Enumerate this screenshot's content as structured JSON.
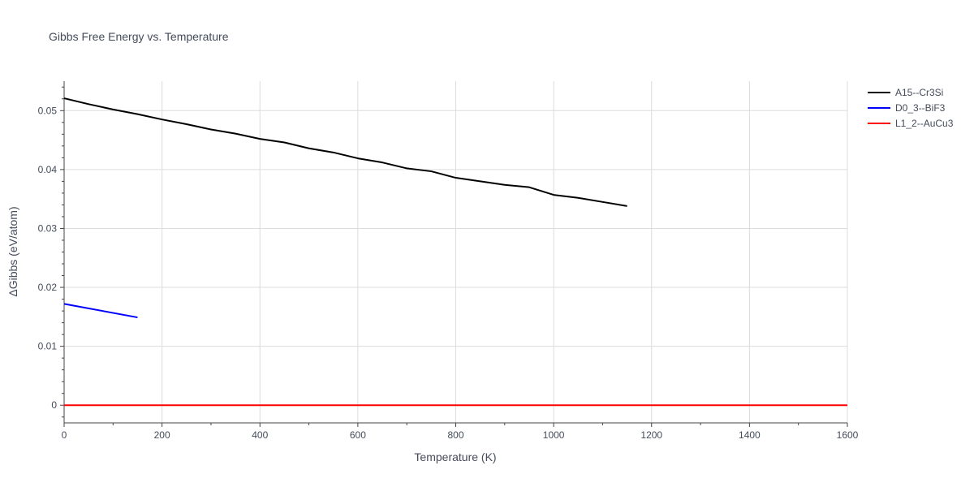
{
  "chart_data": {
    "type": "line",
    "title": "Gibbs Free Energy vs. Temperature",
    "xlabel": "Temperature (K)",
    "ylabel": "ΔGibbs (eV/atom)",
    "xlim": [
      0,
      1600
    ],
    "ylim": [
      -0.003,
      0.055
    ],
    "x_ticks": [
      0,
      200,
      400,
      600,
      800,
      1000,
      1200,
      1400,
      1600
    ],
    "y_ticks": [
      0,
      0.01,
      0.02,
      0.03,
      0.04,
      0.05
    ],
    "y_tick_labels": [
      "0",
      "0.01",
      "0.02",
      "0.03",
      "0.04",
      "0.05"
    ],
    "grid": true,
    "legend_position": "top-right-outside",
    "series": [
      {
        "name": "A15--Cr3Si",
        "color": "#000000",
        "x": [
          0,
          50,
          100,
          150,
          200,
          250,
          300,
          350,
          400,
          450,
          500,
          550,
          600,
          650,
          700,
          750,
          800,
          850,
          900,
          950,
          1000,
          1050,
          1100,
          1150
        ],
        "y": [
          0.0521,
          0.0511,
          0.0502,
          0.0494,
          0.0485,
          0.0477,
          0.0468,
          0.0461,
          0.0452,
          0.0446,
          0.0436,
          0.0429,
          0.0419,
          0.0412,
          0.0402,
          0.0397,
          0.0386,
          0.038,
          0.0374,
          0.037,
          0.0357,
          0.0352,
          0.0345,
          0.0338
        ]
      },
      {
        "name": "D0_3--BiF3",
        "color": "#0000ff",
        "x": [
          0,
          150
        ],
        "y": [
          0.0172,
          0.0149
        ]
      },
      {
        "name": "L1_2--AuCu3",
        "color": "#ff0000",
        "x": [
          0,
          1600
        ],
        "y": [
          0,
          0
        ]
      }
    ]
  }
}
